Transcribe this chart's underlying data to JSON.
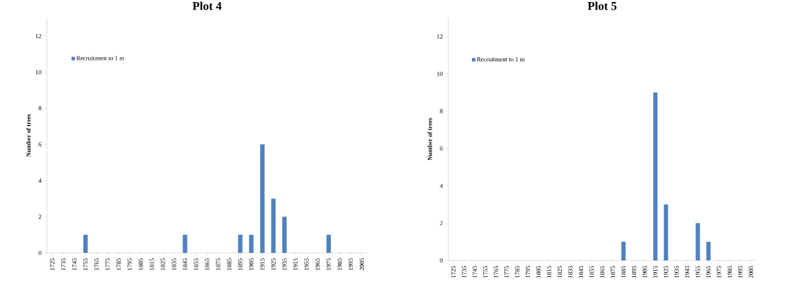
{
  "chart_data": [
    {
      "type": "bar",
      "title": "Plot 4",
      "ylabel": "Number of trees",
      "categories": [
        "1725",
        "1735",
        "1745",
        "1755",
        "1765",
        "1775",
        "1785",
        "1795",
        "1805",
        "1815",
        "1825",
        "1835",
        "1845",
        "1855",
        "1865",
        "1875",
        "1885",
        "1895",
        "1905",
        "1915",
        "1925",
        "1935",
        "1915",
        "1955",
        "1965",
        "1975",
        "1985",
        "1995",
        "2005"
      ],
      "series": [
        {
          "name": "Recruitment to 1 m",
          "color": "#4f81bd",
          "values": [
            0,
            0,
            0,
            1,
            0,
            0,
            0,
            0,
            0,
            0,
            0,
            0,
            1,
            0,
            0,
            0,
            0,
            1,
            1,
            6,
            3,
            2,
            0,
            0,
            0,
            1,
            0,
            0,
            0
          ]
        }
      ],
      "ylim": [
        0,
        13
      ],
      "yticks": [
        0,
        2,
        4,
        6,
        8,
        10,
        12
      ],
      "legend": "top left",
      "grid": false
    },
    {
      "type": "bar",
      "title": "Plot 5",
      "ylabel": "Number of trees",
      "categories": [
        "1725",
        "1735",
        "1745",
        "1755",
        "1765",
        "1775",
        "1785",
        "1795",
        "1805",
        "1815",
        "1825",
        "1835",
        "1845",
        "1855",
        "1865",
        "1875",
        "1885",
        "1895",
        "1905",
        "1915",
        "1925",
        "1935",
        "1945",
        "1955",
        "1965",
        "1975",
        "1985",
        "1995",
        "2005"
      ],
      "series": [
        {
          "name": "Recruitment to 1 m",
          "color": "#4f81bd",
          "values": [
            0,
            0,
            0,
            0,
            0,
            0,
            0,
            0,
            0,
            0,
            0,
            0,
            0,
            0,
            0,
            0,
            1,
            0,
            0,
            9,
            3,
            0,
            0,
            2,
            1,
            0,
            0,
            0,
            0
          ]
        }
      ],
      "ylim": [
        0,
        13
      ],
      "yticks": [
        0,
        2,
        4,
        6,
        8,
        10,
        12
      ],
      "legend": "top left",
      "grid": false
    }
  ]
}
